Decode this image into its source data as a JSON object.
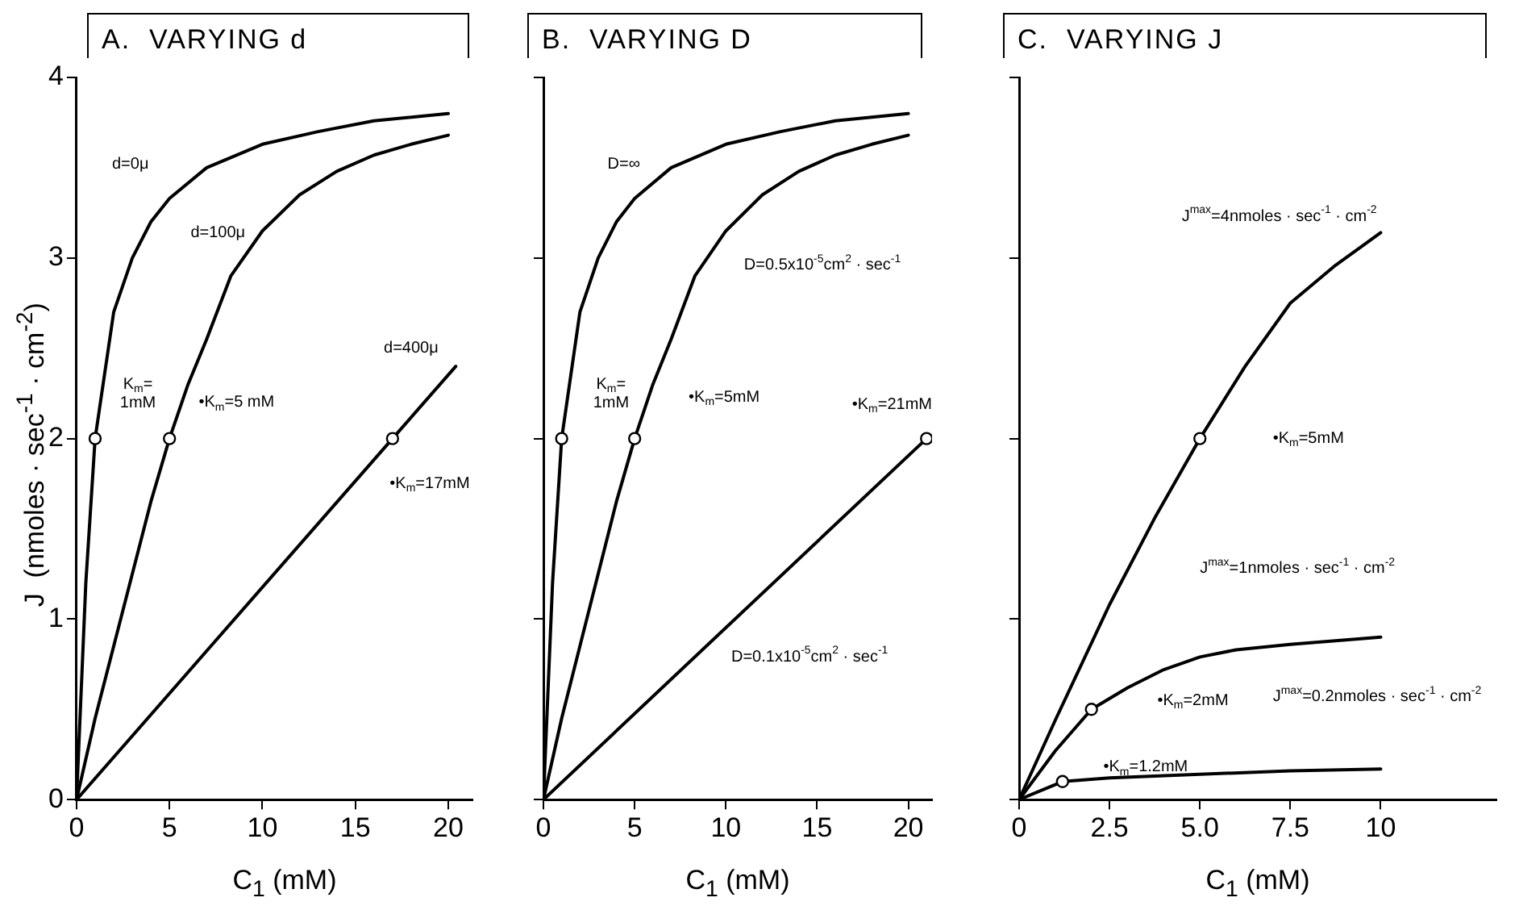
{
  "chart_data": [
    {
      "type": "line",
      "title": "A.  VARYING d",
      "xlabel": "C$_{1}$ (mM)",
      "ylabel": "J  (nmoles · sec$^{-1}$ · cm$^{-2}$)",
      "xlim": [
        0,
        21.3
      ],
      "ylim": [
        0,
        4
      ],
      "xticks": [
        0,
        5,
        10,
        15,
        20
      ],
      "yticks": [
        0,
        1,
        2,
        3,
        4
      ],
      "line_style": "solid",
      "series": [
        {
          "color": "#000000",
          "x": [
            0,
            0.5,
            1,
            2,
            3,
            4,
            5,
            7,
            10,
            13,
            16,
            20
          ],
          "values": [
            0,
            1.2,
            2,
            2.7,
            3.0,
            3.2,
            3.33,
            3.5,
            3.63,
            3.7,
            3.76,
            3.8
          ]
        },
        {
          "color": "#000000",
          "x": [
            0,
            1,
            2,
            3,
            4,
            5,
            6,
            7,
            8.3,
            10,
            12,
            14,
            16,
            18,
            20
          ],
          "values": [
            0,
            0.45,
            0.85,
            1.25,
            1.65,
            2.0,
            2.3,
            2.55,
            2.9,
            3.15,
            3.35,
            3.48,
            3.57,
            3.63,
            3.68
          ]
        },
        {
          "color": "#000000",
          "x": [
            0,
            17,
            20.4
          ],
          "values": [
            0,
            2,
            2.4
          ]
        },
        {
          "type": "scatter",
          "marker": "circle",
          "color": "#000000",
          "x": [
            1,
            5,
            17
          ],
          "values": [
            2,
            2,
            2
          ]
        }
      ],
      "annotations": [
        "d=0μ",
        "d=100μ",
        "d=400μ",
        "K$_{m}$=\n1mM",
        "•K$_{m}$=5 mM",
        "•K$_{m}$=17mM"
      ]
    },
    {
      "type": "line",
      "title": "B.  VARYING D",
      "xlabel": "C$_{1}$ (mM)",
      "xlim": [
        0,
        21.3
      ],
      "ylim": [
        0,
        4
      ],
      "xticks": [
        0,
        5,
        10,
        15,
        20
      ],
      "yticks": [
        0,
        1,
        2,
        3,
        4
      ],
      "tick_labels": "x",
      "line_style": "solid",
      "series": [
        {
          "color": "#000000",
          "x": [
            0,
            0.5,
            1,
            2,
            3,
            4,
            5,
            7,
            10,
            13,
            16,
            20
          ],
          "values": [
            0,
            1.2,
            2,
            2.7,
            3.0,
            3.2,
            3.33,
            3.5,
            3.63,
            3.7,
            3.76,
            3.8
          ]
        },
        {
          "color": "#000000",
          "x": [
            0,
            1,
            2,
            3,
            4,
            5,
            6,
            7,
            8.3,
            10,
            12,
            14,
            16,
            18,
            20
          ],
          "values": [
            0,
            0.45,
            0.85,
            1.25,
            1.65,
            2.0,
            2.3,
            2.55,
            2.9,
            3.15,
            3.35,
            3.48,
            3.57,
            3.63,
            3.68
          ]
        },
        {
          "color": "#000000",
          "x": [
            0,
            21
          ],
          "values": [
            0,
            2
          ]
        },
        {
          "type": "scatter",
          "marker": "circle",
          "color": "#000000",
          "x": [
            1,
            5,
            21
          ],
          "values": [
            2,
            2,
            2
          ]
        }
      ],
      "annotations": [
        "D=∞",
        "D=0.5x10$^{-5}$cm$^{2}$ · sec$^{-1}$",
        "K$_{m}$=\n1mM",
        "•K$_{m}$=5mM",
        "•K$_{m}$=21mM",
        "D=0.1x10$^{-5}$cm$^{2}$ · sec$^{-1}$"
      ]
    },
    {
      "type": "line",
      "title": "C.  VARYING J",
      "xlabel": "C$_{1}$ (mM)",
      "xlim": [
        0,
        13.2
      ],
      "ylim": [
        0,
        4
      ],
      "xticks": [
        0,
        2.5,
        {
          "value": 5,
          "label": "5.0"
        },
        7.5,
        10
      ],
      "yticks": [
        0,
        1,
        2,
        3,
        4
      ],
      "tick_labels": "x",
      "line_style": "solid",
      "series": [
        {
          "color": "#000000",
          "x": [
            0,
            1,
            2.5,
            3.75,
            5,
            6.25,
            7.5,
            8.75,
            10
          ],
          "values": [
            0,
            0.44,
            1.08,
            1.56,
            2.0,
            2.4,
            2.75,
            2.96,
            3.14
          ]
        },
        {
          "color": "#000000",
          "x": [
            0,
            1,
            2,
            3,
            4,
            5,
            6,
            7.5,
            10
          ],
          "values": [
            0,
            0.27,
            0.5,
            0.62,
            0.72,
            0.79,
            0.83,
            0.86,
            0.9
          ]
        },
        {
          "color": "#000000",
          "x": [
            0,
            1.2,
            2.5,
            5,
            7.5,
            10
          ],
          "values": [
            0,
            0.1,
            0.12,
            0.14,
            0.16,
            0.17
          ]
        },
        {
          "type": "scatter",
          "marker": "circle",
          "color": "#000000",
          "x": [
            5,
            2,
            1.2
          ],
          "values": [
            2,
            0.5,
            0.1
          ]
        }
      ],
      "annotations": [
        "J$^{max}$=4nmoles · sec$^{-1}$ · cm$^{-2}$",
        "•K$_{m}$=5mM",
        "J$^{max}$=1nmoles · sec$^{-1}$ · cm$^{-2}$",
        "•K$_{m}$=2mM",
        "J$^{max}$=0.2nmoles · sec$^{-1}$ · cm$^{-2}$",
        "•K$_{m}$=1.2mM"
      ]
    }
  ]
}
